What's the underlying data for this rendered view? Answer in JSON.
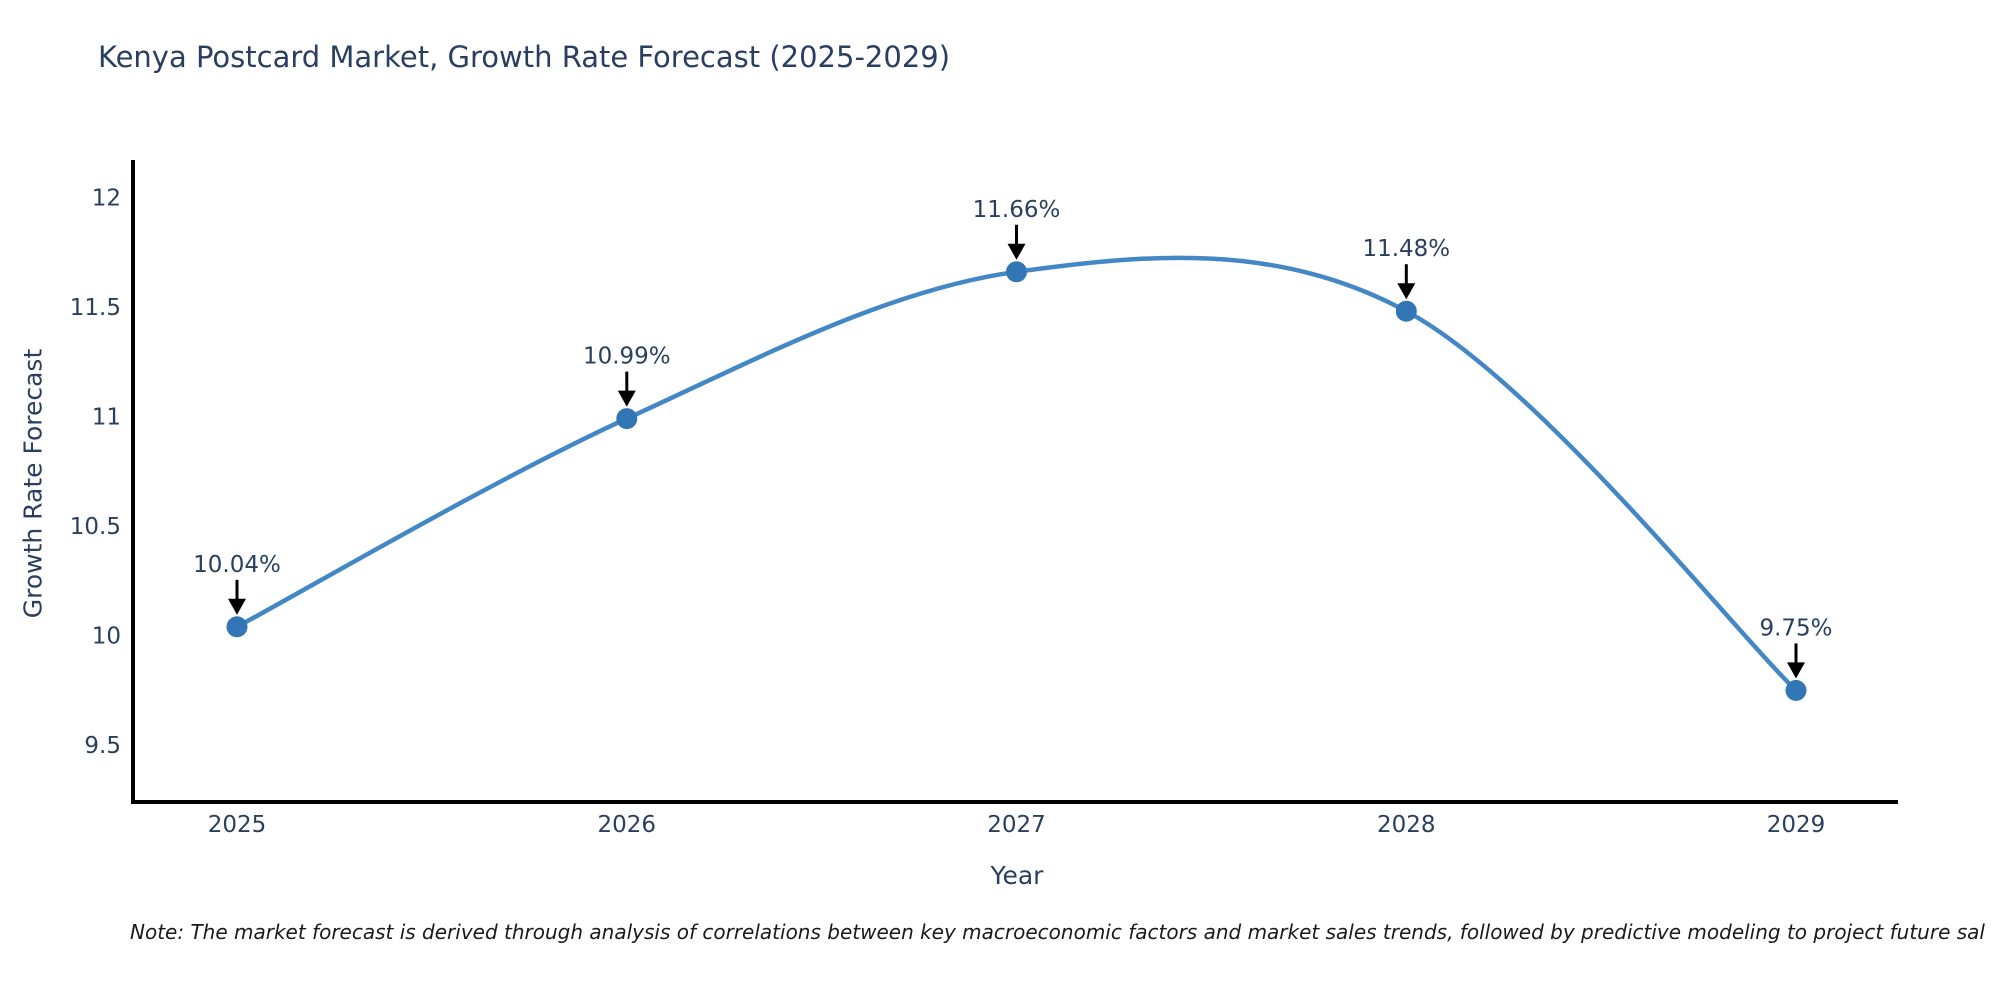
{
  "chart_data": {
    "type": "line",
    "title": "Kenya Postcard Market, Growth Rate Forecast (2025-2029)",
    "xlabel": "Year",
    "ylabel": "Growth Rate Forecast",
    "categories": [
      "2025",
      "2026",
      "2027",
      "2028",
      "2029"
    ],
    "series": [
      {
        "name": "Growth Rate Forecast",
        "values": [
          10.04,
          10.99,
          11.66,
          11.48,
          9.75
        ]
      }
    ],
    "point_labels": [
      "10.04%",
      "10.99%",
      "11.66%",
      "11.48%",
      "9.75%"
    ],
    "yticks": [
      9.5,
      10,
      10.5,
      11,
      11.5,
      12
    ],
    "ylim": [
      9.25,
      12.17
    ],
    "line_shape": "spline",
    "grid": false,
    "legend": "none",
    "colors": {
      "line": "#4487c5",
      "marker": "#3276b5",
      "axis": "#000000",
      "text": "#2a3f5f",
      "annotation": "#000000"
    }
  },
  "note": "Note: The market forecast is derived through analysis of correlations between key macroeconomic factors and market sales trends, followed by predictive modeling to project future sal"
}
